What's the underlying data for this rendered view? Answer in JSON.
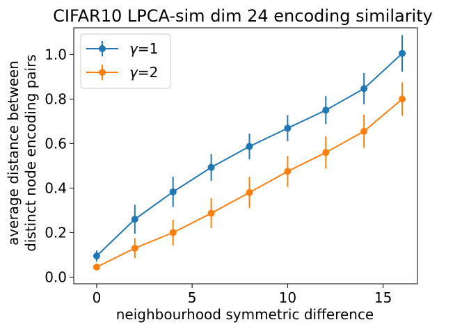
{
  "chart_data": {
    "type": "line",
    "title": "CIFAR10 LPCA-sim dim 24 encoding similarity",
    "xlabel": "neighbourhood symmetric difference",
    "ylabel_lines": [
      "average distance between",
      "distinct node encoding pairs"
    ],
    "xlim": [
      -1.2,
      16.8
    ],
    "ylim": [
      -0.03,
      1.12
    ],
    "xticks": [
      0,
      5,
      10,
      15
    ],
    "xtick_labels": [
      "0",
      "5",
      "10",
      "15"
    ],
    "yticks": [
      0.0,
      0.2,
      0.4,
      0.6,
      0.8,
      1.0
    ],
    "ytick_labels": [
      "0.0",
      "0.2",
      "0.4",
      "0.6",
      "0.8",
      "1.0"
    ],
    "grid": false,
    "legend_position": "top-left",
    "x": [
      0,
      2,
      4,
      6,
      8,
      10,
      12,
      14,
      16
    ],
    "series": [
      {
        "legend_symbol": "γ",
        "legend_value": "=1",
        "color": "#1f77b4",
        "values": [
          0.095,
          0.26,
          0.383,
          0.493,
          0.587,
          0.669,
          0.75,
          0.847,
          1.005
        ],
        "errors": [
          0.025,
          0.065,
          0.068,
          0.06,
          0.058,
          0.058,
          0.063,
          0.07,
          0.082
        ]
      },
      {
        "legend_symbol": "γ",
        "legend_value": "=2",
        "color": "#ff7f0e",
        "values": [
          0.045,
          0.13,
          0.2,
          0.287,
          0.38,
          0.475,
          0.56,
          0.655,
          0.8
        ],
        "errors": [
          0.012,
          0.045,
          0.058,
          0.068,
          0.07,
          0.07,
          0.072,
          0.075,
          0.075
        ]
      }
    ]
  }
}
